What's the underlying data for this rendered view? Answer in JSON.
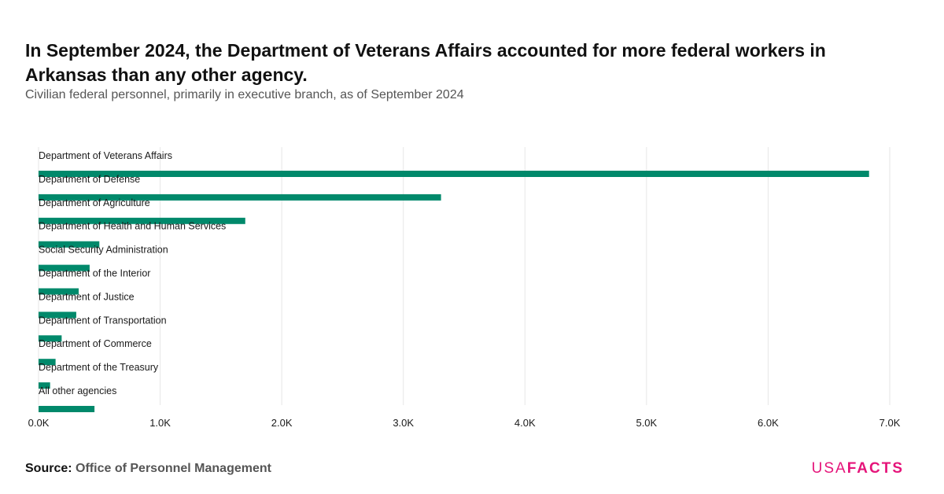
{
  "header": {
    "title": "In September 2024, the Department of Veterans Affairs accounted for more federal workers in Arkansas than any other agency.",
    "subtitle": "Civilian federal personnel, primarily in executive branch, as of September 2024"
  },
  "chart_data": {
    "type": "bar",
    "orientation": "horizontal",
    "categories": [
      "Department of Veterans Affairs",
      "Department of Defense",
      "Department of Agriculture",
      "Department of Health and Human Services",
      "Social Security Administration",
      "Department of the Interior",
      "Department of Justice",
      "Department of Transportation",
      "Department of Commerce",
      "Department of the Treasury",
      "All other agencies"
    ],
    "values": [
      6830,
      3310,
      1700,
      500,
      420,
      330,
      310,
      190,
      140,
      95,
      460
    ],
    "xlim": [
      0,
      7000
    ],
    "xticks": [
      0,
      1000,
      2000,
      3000,
      4000,
      5000,
      6000,
      7000
    ],
    "xtick_labels": [
      "0.0K",
      "1.0K",
      "2.0K",
      "3.0K",
      "4.0K",
      "5.0K",
      "6.0K",
      "7.0K"
    ],
    "grid": "vertical",
    "bar_color": "#00896b"
  },
  "footer": {
    "source_label": "Source:",
    "source_value": "Office of Personnel Management",
    "logo_part1": "USA",
    "logo_part2": "FACTS"
  }
}
